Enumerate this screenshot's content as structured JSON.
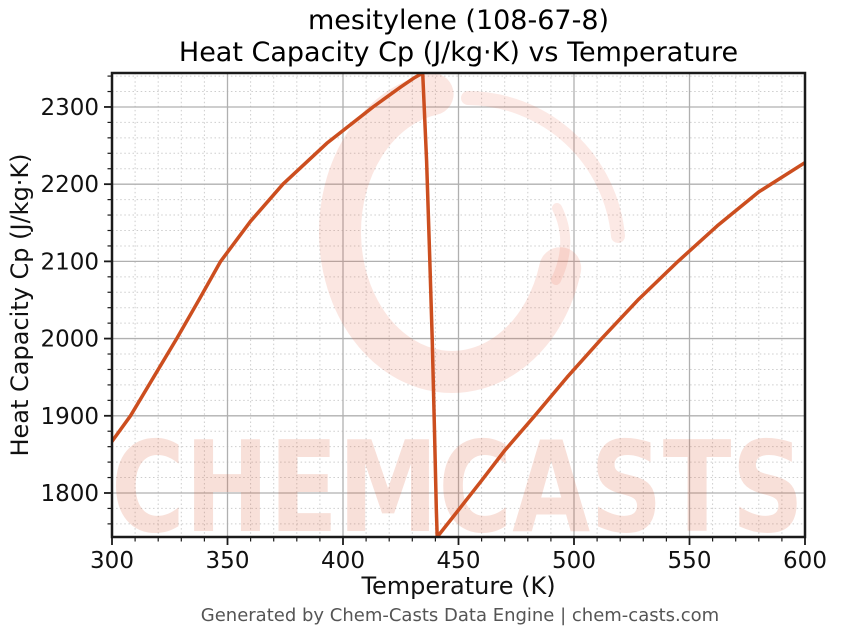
{
  "header": {
    "title_line1": "mesitylene (108-67-8)",
    "title_line2": "Heat Capacity Cp (J/kg·K) vs Temperature"
  },
  "footer": {
    "text": "Generated by Chem-Casts Data Engine | chem-casts.com"
  },
  "watermark": {
    "text": "CHEMCASTS",
    "color": "#dc5a32"
  },
  "chart_data": {
    "type": "line",
    "title": "mesitylene (108-67-8)",
    "subtitle": "Heat Capacity Cp (J/kg·K) vs Temperature",
    "xlabel": "Temperature (K)",
    "ylabel": "Heat Capacity Cp (J/kg·K)",
    "xlim": [
      300,
      600
    ],
    "ylim": [
      1743,
      2344
    ],
    "x_major_ticks": [
      300,
      350,
      400,
      450,
      500,
      550,
      600
    ],
    "y_major_ticks": [
      1800,
      1900,
      2000,
      2100,
      2200,
      2300
    ],
    "x_minor_step": 10,
    "y_minor_step": 20,
    "grid": "major-solid and minor-dotted",
    "legend": false,
    "line_color": "#cc4e1f",
    "annotations": {
      "peak": {
        "T": 434.5,
        "Cp": 2344
      },
      "discontinuity_bottom": {
        "T": 440.8,
        "Cp": 1743
      }
    },
    "series": [
      {
        "name": "Cp (J/kg·K)",
        "color": "#cc4e1f",
        "points": [
          [
            300,
            1867
          ],
          [
            308,
            1900
          ],
          [
            318,
            1950
          ],
          [
            328,
            2000
          ],
          [
            338,
            2052
          ],
          [
            347,
            2100
          ],
          [
            360,
            2152
          ],
          [
            374,
            2200
          ],
          [
            393,
            2253
          ],
          [
            413,
            2300
          ],
          [
            425,
            2326
          ],
          [
            431,
            2338
          ],
          [
            434.5,
            2344
          ],
          [
            436.2,
            2230
          ],
          [
            437.5,
            2110
          ],
          [
            438.6,
            2000
          ],
          [
            439.6,
            1880
          ],
          [
            440.4,
            1780
          ],
          [
            440.8,
            1743
          ],
          [
            450,
            1778
          ],
          [
            460,
            1816
          ],
          [
            470,
            1855
          ],
          [
            483,
            1900
          ],
          [
            497,
            1950
          ],
          [
            512,
            2000
          ],
          [
            528,
            2051
          ],
          [
            545,
            2100
          ],
          [
            562,
            2146
          ],
          [
            580,
            2190
          ],
          [
            600,
            2228
          ]
        ]
      }
    ]
  }
}
